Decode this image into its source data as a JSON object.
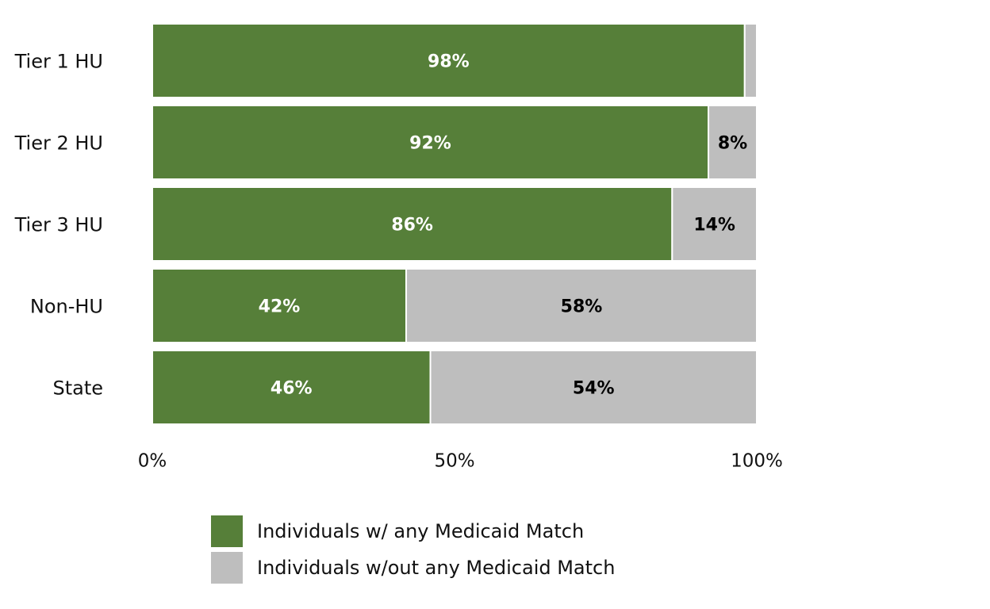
{
  "chart_data": {
    "type": "bar",
    "orientation": "horizontal",
    "stacked": true,
    "categories": [
      "Tier 1 HU",
      "Tier 2 HU",
      "Tier 3 HU",
      "Non-HU",
      "State"
    ],
    "series": [
      {
        "name": "Individuals w/ any Medicaid Match",
        "color": "#567f39",
        "label_color": "#ffffff",
        "values": [
          98,
          92,
          86,
          42,
          46
        ],
        "labels": [
          "98%",
          "92%",
          "86%",
          "42%",
          "46%"
        ]
      },
      {
        "name": "Individuals w/out any Medicaid Match",
        "color": "#bebebe",
        "label_color": "#000000",
        "values": [
          2,
          8,
          14,
          58,
          54
        ],
        "labels": [
          "",
          "8%",
          "14%",
          "58%",
          "54%"
        ]
      }
    ],
    "x_ticks": [
      "0%",
      "50%",
      "100%"
    ],
    "x_tick_values": [
      0,
      50,
      100
    ],
    "xlim": [
      0,
      100
    ],
    "title": "",
    "xlabel": "",
    "ylabel": "",
    "grid": false,
    "legend_position": "bottom"
  }
}
